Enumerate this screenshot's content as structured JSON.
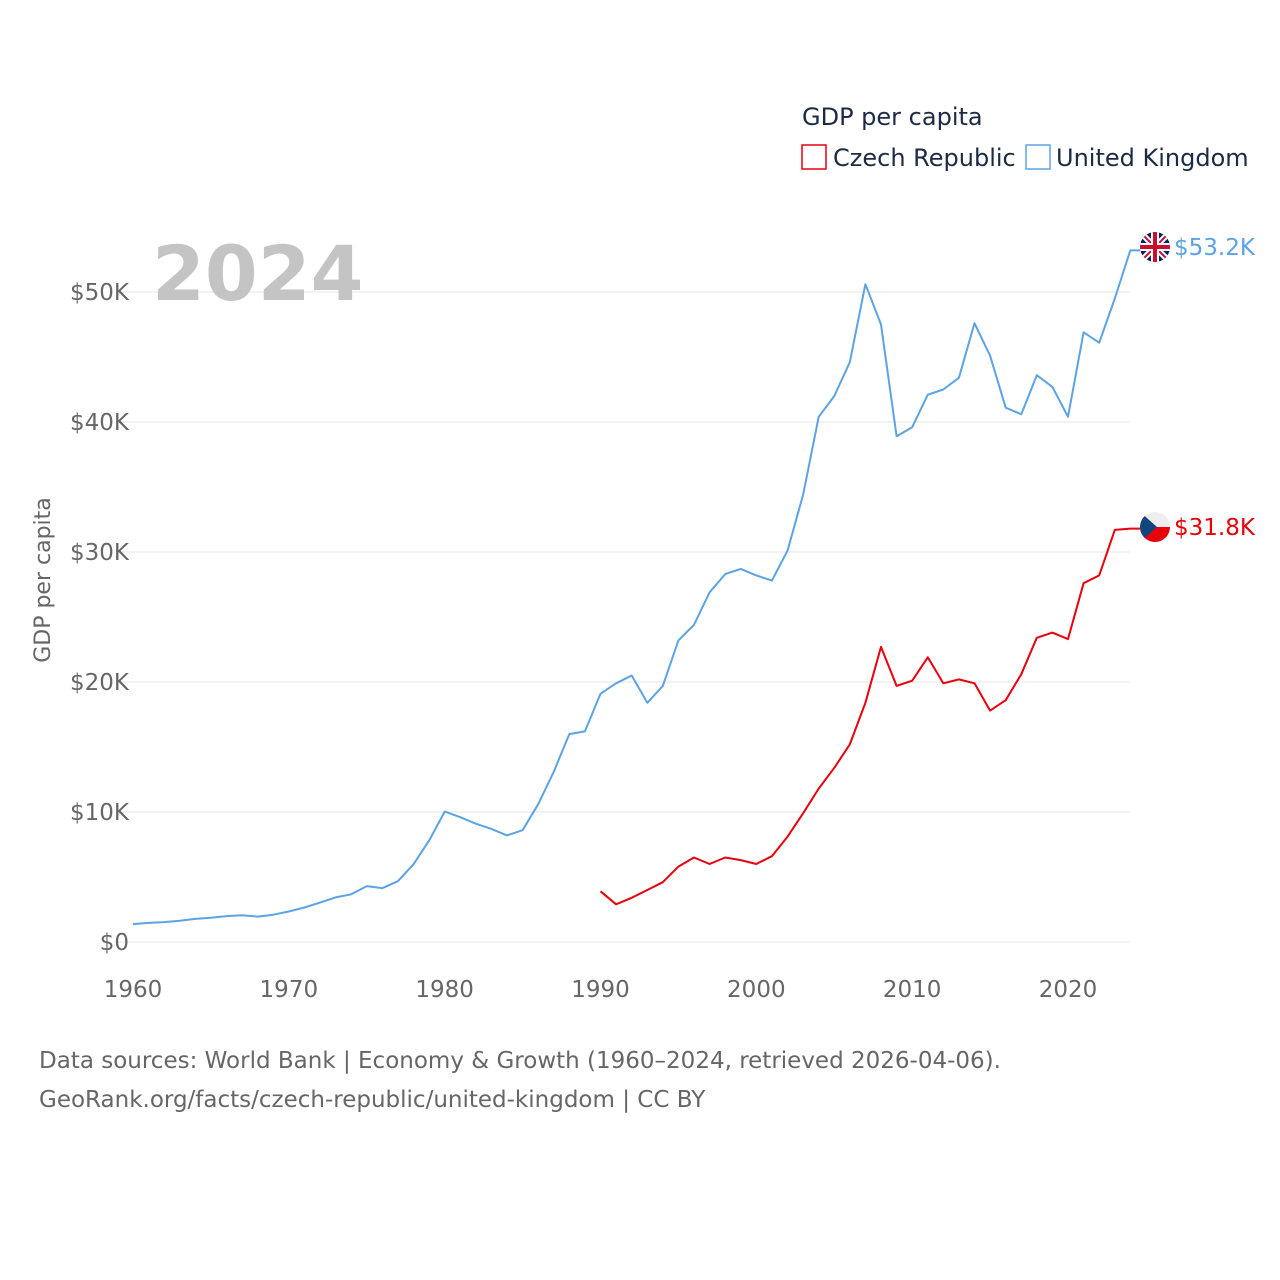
{
  "chart_data": {
    "type": "line",
    "title": "GDP per capita",
    "ylabel": "GDP per capita",
    "xlabel": "",
    "current_year": "2024",
    "xlim": [
      1960,
      2024
    ],
    "ylim": [
      0,
      55000
    ],
    "x_ticks": [
      1960,
      1970,
      1980,
      1990,
      2000,
      2010,
      2020
    ],
    "x_tick_labels": [
      "1960",
      "1970",
      "1980",
      "1990",
      "2000",
      "2010",
      "2020"
    ],
    "y_ticks": [
      0,
      10000,
      20000,
      30000,
      40000,
      50000
    ],
    "y_tick_labels": [
      "$0",
      "$10K",
      "$20K",
      "$30K",
      "$40K",
      "$50K"
    ],
    "grid": true,
    "legend_placement": "top-right",
    "series": [
      {
        "name": "Czech Republic",
        "color": "#e8000b",
        "end_label": "$31.8K",
        "flag": "czech-flag",
        "start_year": 1990,
        "values": [
          3900,
          2900,
          3400,
          4000,
          4600,
          5800,
          6500,
          6000,
          6500,
          6300,
          6000,
          6600,
          8100,
          9900,
          11800,
          13400,
          15200,
          18400,
          22700,
          19700,
          20100,
          21900,
          19900,
          20200,
          19900,
          17800,
          18600,
          20600,
          23400,
          23800,
          23300,
          27600,
          28200,
          31700,
          31800
        ]
      },
      {
        "name": "United Kingdom",
        "color": "#5ca3e6",
        "end_label": "$53.2K",
        "flag": "uk-flag",
        "start_year": 1960,
        "values": [
          1380,
          1470,
          1530,
          1630,
          1780,
          1870,
          1990,
          2060,
          1950,
          2100,
          2350,
          2650,
          3030,
          3430,
          3670,
          4300,
          4140,
          4680,
          5980,
          7800,
          10030,
          9600,
          9100,
          8700,
          8200,
          8600,
          10600,
          13100,
          15990,
          16200,
          19100,
          19900,
          20500,
          18400,
          19700,
          23200,
          24400,
          26900,
          28300,
          28700,
          28200,
          27800,
          30100,
          34400,
          40400,
          42000,
          44600,
          50600,
          47500,
          38900,
          39600,
          42100,
          42500,
          43400,
          47600,
          45100,
          41100,
          40600,
          43600,
          42700,
          40400,
          46900,
          46100,
          49500,
          53200
        ]
      }
    ]
  },
  "footer": {
    "source_line": "Data sources: World Bank | Economy & Growth (1960–2024, retrieved 2026-04-06).",
    "url_line": "GeoRank.org/facts/czech-republic/united-kingdom | CC BY"
  }
}
